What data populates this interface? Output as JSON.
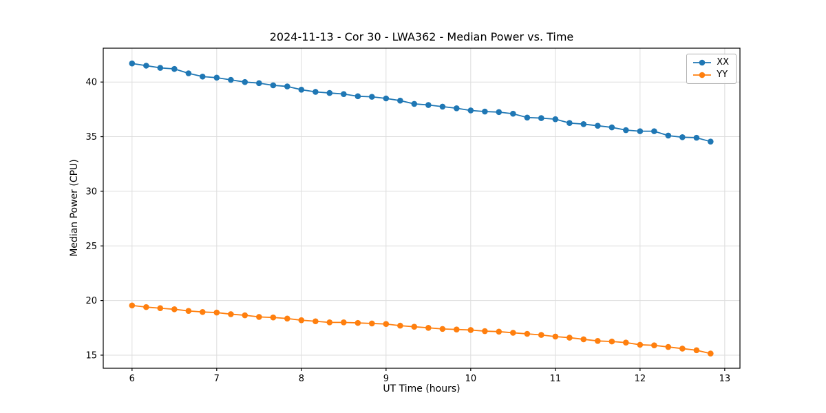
{
  "chart_data": {
    "type": "line",
    "title": "2024-11-13 - Cor 30 - LWA362 - Median Power vs. Time",
    "xlabel": "UT Time (hours)",
    "ylabel": "Median Power (CPU)",
    "xlim": [
      5.66,
      13.18
    ],
    "ylim": [
      13.8,
      43.1
    ],
    "xticks": [
      6,
      7,
      8,
      9,
      10,
      11,
      12,
      13
    ],
    "yticks": [
      15,
      20,
      25,
      30,
      35,
      40
    ],
    "grid": true,
    "legend_position": "upper right",
    "x": [
      6.0,
      6.167,
      6.333,
      6.5,
      6.667,
      6.833,
      7.0,
      7.167,
      7.333,
      7.5,
      7.667,
      7.833,
      8.0,
      8.167,
      8.333,
      8.5,
      8.667,
      8.833,
      9.0,
      9.167,
      9.333,
      9.5,
      9.667,
      9.833,
      10.0,
      10.167,
      10.333,
      10.5,
      10.667,
      10.833,
      11.0,
      11.167,
      11.333,
      11.5,
      11.667,
      11.833,
      12.0,
      12.167,
      12.333,
      12.5,
      12.667,
      12.833
    ],
    "series": [
      {
        "name": "XX",
        "color": "#1f77b4",
        "values": [
          41.7,
          41.5,
          41.3,
          41.2,
          40.8,
          40.5,
          40.4,
          40.2,
          40.0,
          39.9,
          39.7,
          39.6,
          39.3,
          39.1,
          39.0,
          38.9,
          38.7,
          38.65,
          38.5,
          38.3,
          38.0,
          37.9,
          37.75,
          37.6,
          37.4,
          37.3,
          37.25,
          37.1,
          36.75,
          36.7,
          36.6,
          36.25,
          36.15,
          36.0,
          35.85,
          35.6,
          35.5,
          35.5,
          35.1,
          34.95,
          34.9,
          34.55
        ]
      },
      {
        "name": "YY",
        "color": "#ff7f0e",
        "values": [
          19.55,
          19.4,
          19.3,
          19.2,
          19.05,
          18.95,
          18.9,
          18.75,
          18.65,
          18.5,
          18.45,
          18.35,
          18.2,
          18.1,
          18.0,
          18.0,
          17.95,
          17.9,
          17.85,
          17.7,
          17.6,
          17.5,
          17.4,
          17.35,
          17.3,
          17.2,
          17.15,
          17.05,
          16.95,
          16.85,
          16.7,
          16.6,
          16.45,
          16.3,
          16.25,
          16.15,
          15.95,
          15.9,
          15.75,
          15.6,
          15.45,
          15.15
        ]
      }
    ]
  }
}
